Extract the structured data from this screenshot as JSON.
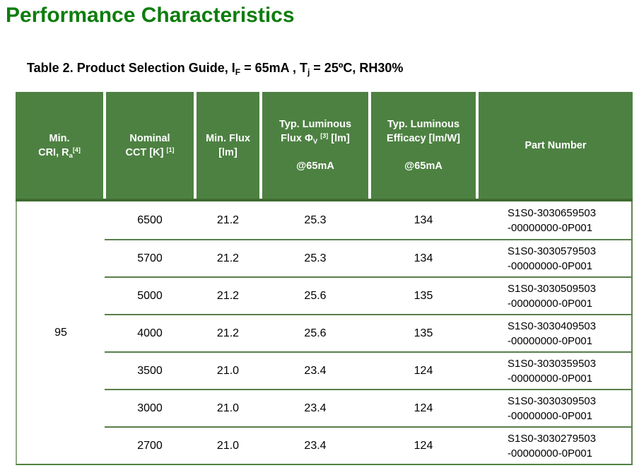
{
  "page": {
    "title": "Performance Characteristics"
  },
  "caption": {
    "part1": "Table 2. Product Selection Guide, I",
    "sub1": "F",
    "part2": " = 65mA , T",
    "sub2": "j",
    "part3": " = 25ºC, RH30%"
  },
  "colors": {
    "title_green": "#0E7D0E",
    "header_green": "#4D8142",
    "header_edge_green": "#3E6B31",
    "separator_green": "#587F4B",
    "light_border_green": "#92AC85"
  },
  "table": {
    "header": {
      "min_cri": {
        "line1": "Min.",
        "line2_text": "CRI, R",
        "line2_sub": "a",
        "line2_sup": "[4]"
      },
      "nominal_cct": {
        "line1": "Nominal",
        "line2_text": "CCT [K] ",
        "line2_sup": "[1]"
      },
      "min_flux": {
        "line1": "Min. Flux",
        "line2": "[lm]"
      },
      "typ_flux": {
        "line1": "Typ. Luminous",
        "line2_text": "Flux Φ",
        "line2_sub": "V",
        "line2_sup": "[3]",
        "line2_tail": " [lm]",
        "line3": "@65mA"
      },
      "typ_efficacy": {
        "line1": "Typ. Luminous",
        "line2": "Efficacy [lm/W]",
        "line3": "@65mA"
      },
      "part_number": {
        "line1": "Part Number"
      }
    },
    "min_cri_value": "95",
    "rows": [
      {
        "cct": "6500",
        "min_flux": "21.2",
        "typ_flux": "25.3",
        "efficacy": "134",
        "part1": "S1S0-3030659503",
        "part2": "-00000000-0P001"
      },
      {
        "cct": "5700",
        "min_flux": "21.2",
        "typ_flux": "25.3",
        "efficacy": "134",
        "part1": "S1S0-3030579503",
        "part2": "-00000000-0P001"
      },
      {
        "cct": "5000",
        "min_flux": "21.2",
        "typ_flux": "25.6",
        "efficacy": "135",
        "part1": "S1S0-3030509503",
        "part2": "-00000000-0P001"
      },
      {
        "cct": "4000",
        "min_flux": "21.2",
        "typ_flux": "25.6",
        "efficacy": "135",
        "part1": "S1S0-3030409503",
        "part2": "-00000000-0P001"
      },
      {
        "cct": "3500",
        "min_flux": "21.0",
        "typ_flux": "23.4",
        "efficacy": "124",
        "part1": "S1S0-3030359503",
        "part2": "-00000000-0P001"
      },
      {
        "cct": "3000",
        "min_flux": "21.0",
        "typ_flux": "23.4",
        "efficacy": "124",
        "part1": "S1S0-3030309503",
        "part2": "-00000000-0P001"
      },
      {
        "cct": "2700",
        "min_flux": "21.0",
        "typ_flux": "23.4",
        "efficacy": "124",
        "part1": "S1S0-3030279503",
        "part2": "-00000000-0P001"
      }
    ]
  }
}
